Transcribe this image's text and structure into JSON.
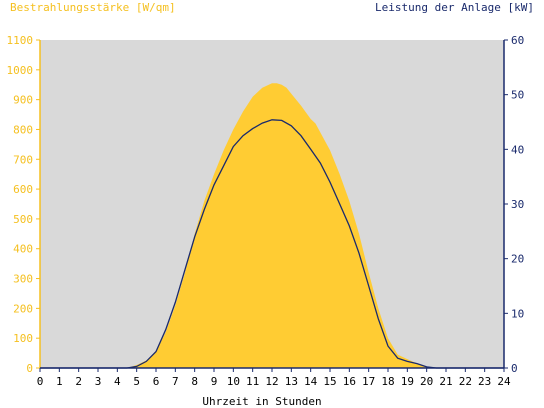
{
  "chart_data": {
    "type": "area",
    "left_axis_title": "Bestrahlungsstärke [W/qm]",
    "right_axis_title": "Leistung der Anlage [kW]",
    "xlabel": "Uhrzeit in Stunden",
    "xlim": [
      0,
      24
    ],
    "ylim_left": [
      0,
      1100
    ],
    "ylim_right": [
      0,
      60
    ],
    "x_ticks": [
      0,
      1,
      2,
      3,
      4,
      5,
      6,
      7,
      8,
      9,
      10,
      11,
      12,
      13,
      14,
      15,
      16,
      17,
      18,
      19,
      20,
      21,
      22,
      23,
      24
    ],
    "left_ticks": [
      0,
      100,
      200,
      300,
      400,
      500,
      600,
      700,
      800,
      900,
      1000,
      1100
    ],
    "right_ticks": [
      0,
      10,
      20,
      30,
      40,
      50,
      60
    ],
    "grid": false,
    "colors": {
      "plot_background": "#d9d9d9",
      "irradiance_fill": "#ffcc33",
      "left_axis": "#f5c020",
      "right_axis": "#1a2a6c",
      "power_line": "#1a2a6c"
    },
    "series": [
      {
        "name": "Bestrahlungsstärke",
        "axis": "left",
        "x": [
          0,
          4.5,
          5,
          5.5,
          6,
          6.5,
          7,
          7.5,
          8,
          8.5,
          9,
          9.5,
          10,
          10.5,
          11,
          11.5,
          12,
          12.25,
          12.5,
          12.75,
          13,
          13.5,
          14,
          14.25,
          14.5,
          15,
          15.5,
          16,
          16.5,
          17,
          17.5,
          18,
          18.5,
          19,
          19.5,
          20,
          20.5,
          24
        ],
        "values": [
          0,
          0,
          10,
          25,
          55,
          120,
          210,
          320,
          450,
          560,
          650,
          730,
          800,
          860,
          910,
          940,
          955,
          955,
          950,
          940,
          920,
          880,
          835,
          820,
          790,
          730,
          650,
          560,
          450,
          320,
          200,
          100,
          45,
          30,
          15,
          5,
          0,
          0
        ]
      },
      {
        "name": "Leistung der Anlage",
        "axis": "right",
        "x": [
          0,
          4.5,
          5,
          5.5,
          6,
          6.5,
          7,
          7.5,
          8,
          8.5,
          9,
          9.5,
          10,
          10.5,
          11,
          11.5,
          12,
          12.5,
          13,
          13.5,
          14,
          14.5,
          15,
          15.5,
          16,
          16.5,
          17,
          17.5,
          18,
          18.5,
          19,
          19.5,
          20,
          20.5,
          24
        ],
        "values": [
          0,
          0,
          0.3,
          1.2,
          3,
          7,
          12,
          18,
          24,
          29,
          33.5,
          37,
          40.5,
          42.5,
          43.8,
          44.8,
          45.4,
          45.3,
          44.3,
          42.5,
          40,
          37.5,
          34,
          30,
          26,
          21,
          15,
          9,
          4,
          1.8,
          1.2,
          0.8,
          0.2,
          0,
          0
        ]
      }
    ]
  }
}
